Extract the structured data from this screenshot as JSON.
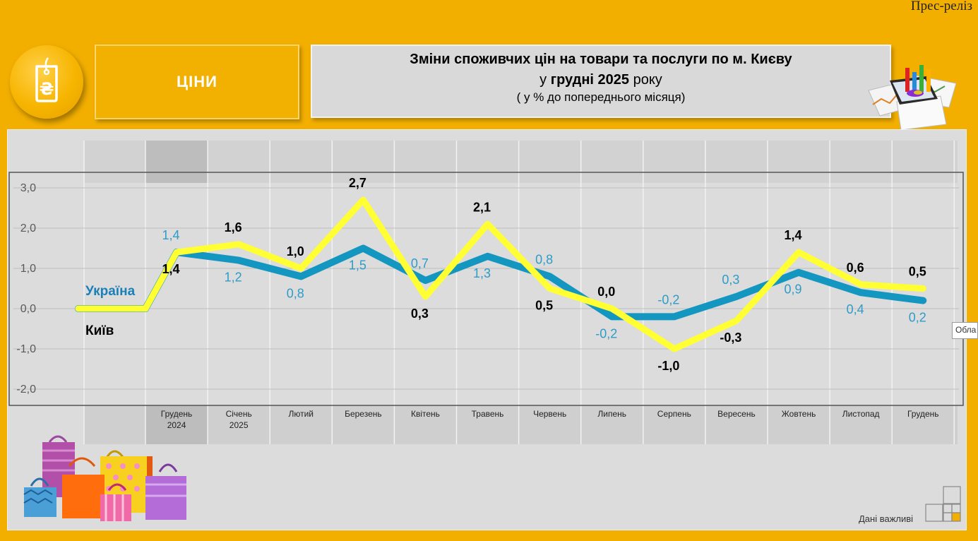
{
  "header": {
    "press_release": "Прес-реліз",
    "section_label": "ЦІНИ",
    "title_line1": "Зміни споживчих цін на товари та послуги по м. Києву",
    "title_line2_pre": "у ",
    "title_line2_bold": "грудні 2025",
    "title_line2_post": " року",
    "title_line3": "( у  % до попереднього місяця)"
  },
  "icons": {
    "logo": "hryvnia-tag-icon",
    "deco": "tablet-bar-chart-icon",
    "bags": "shopping-bags-icon",
    "grid": "grid-squares-icon"
  },
  "footer": {
    "note": "Дані важливі"
  },
  "tooltip_fragment": "Обла",
  "colors": {
    "background": "#F3AF00",
    "panel": "#DCDCDC",
    "ukraine": "#1396C0",
    "kyiv": "#FFFF33",
    "ukraine_label": "#1B7FB8",
    "ukraine_value": "#2E9CC8",
    "kyiv_value": "#000000"
  },
  "chart_data": {
    "type": "line",
    "categories": [
      "Грудень 2024",
      "Січень 2025",
      "Лютий",
      "Березень",
      "Квітень",
      "Травень",
      "Червень",
      "Липень",
      "Серпень",
      "Вересень",
      "Жовтень",
      "Листопад",
      "Грудень"
    ],
    "ylim": [
      -2.0,
      3.0
    ],
    "yticks": [
      "3,0",
      "2,0",
      "1,0",
      "0,0",
      "-1,0",
      "-2,0"
    ],
    "series": [
      {
        "name": "Україна",
        "values": [
          1.4,
          1.2,
          0.8,
          1.5,
          0.7,
          1.3,
          0.8,
          -0.2,
          -0.2,
          0.3,
          0.9,
          0.4,
          0.2
        ],
        "labels": [
          "1,4",
          "1,2",
          "0,8",
          "1,5",
          "0,7",
          "1,3",
          "0,8",
          "-0,2",
          "-0,2",
          "0,3",
          "0,9",
          "0,4",
          "0,2"
        ]
      },
      {
        "name": "Київ",
        "values": [
          1.4,
          1.6,
          1.0,
          2.7,
          0.3,
          2.1,
          0.5,
          0.0,
          -1.0,
          -0.3,
          1.4,
          0.6,
          0.5
        ],
        "labels": [
          "1,4",
          "1,6",
          "1,0",
          "2,7",
          "0,3",
          "2,1",
          "0,5",
          "0,0",
          "-1,0",
          "-0,3",
          "1,4",
          "0,6",
          "0,5"
        ]
      }
    ],
    "grid": true
  }
}
